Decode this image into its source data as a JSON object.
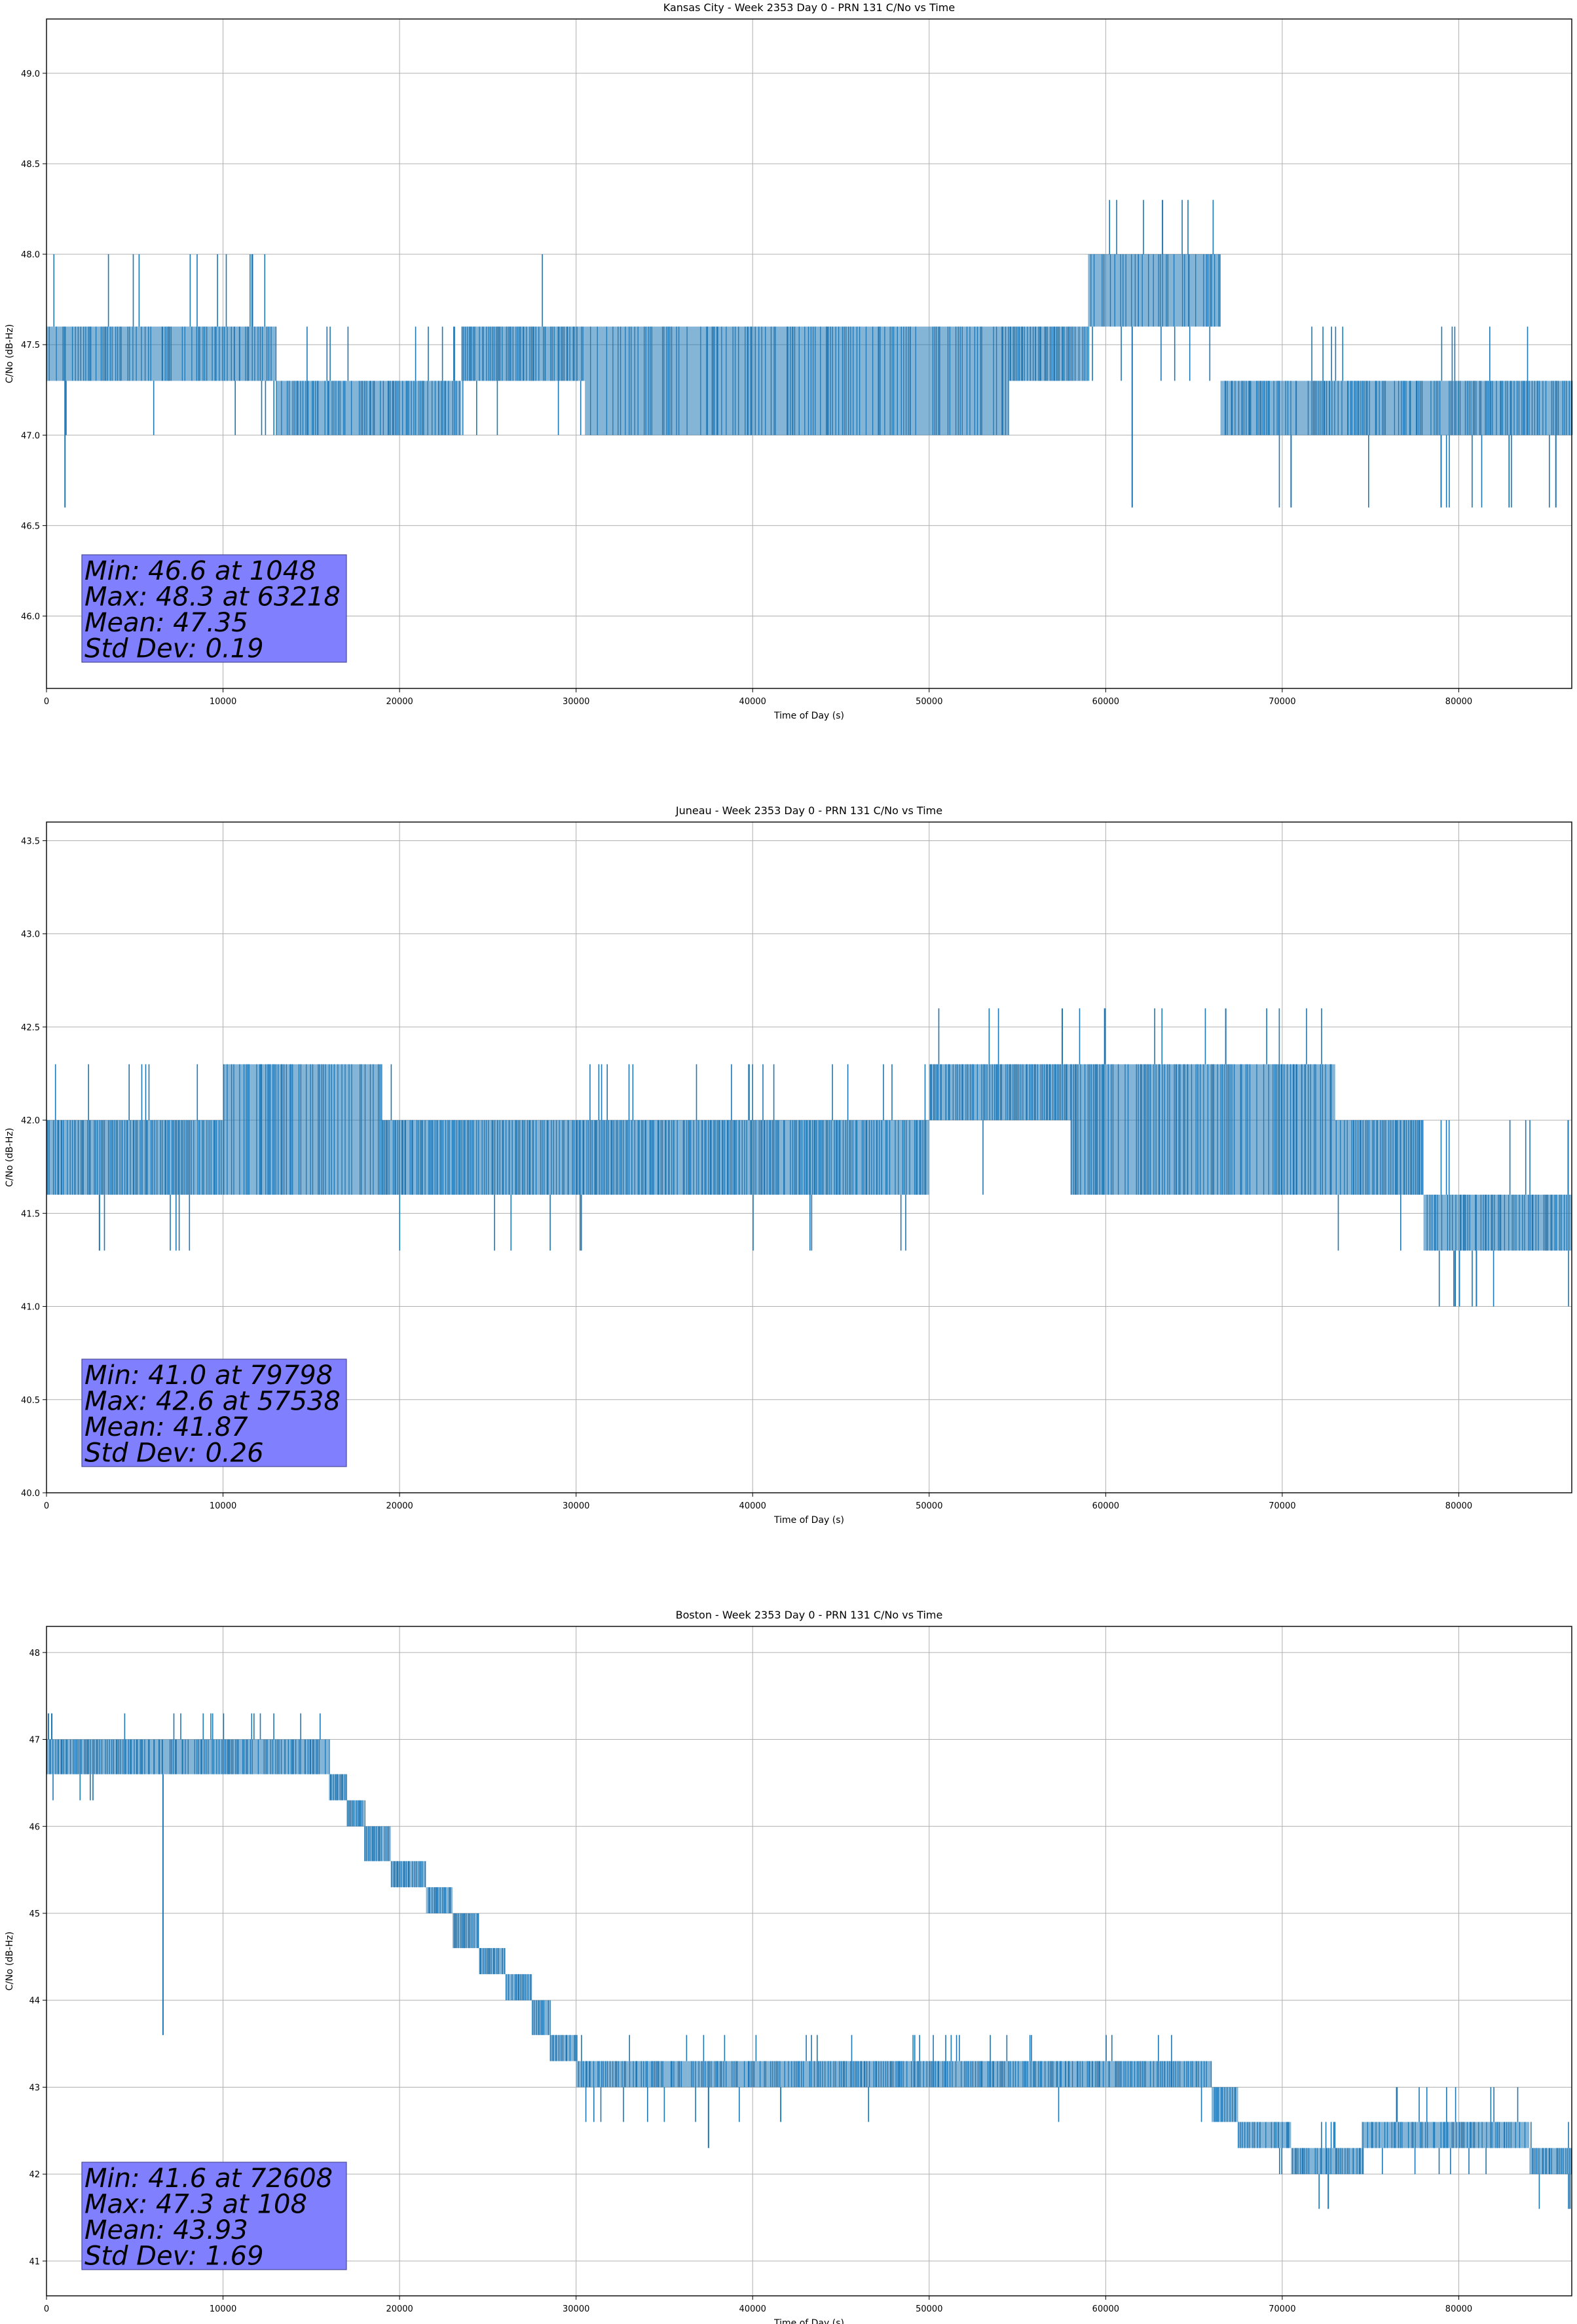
{
  "chart_data": [
    {
      "type": "line",
      "title": "Kansas City - Week 2353 Day 0 - PRN 131 C/No vs Time",
      "xlabel": "Time of Day (s)",
      "ylabel": "C/No (dB-Hz)",
      "xlim": [
        0,
        86400
      ],
      "ylim": [
        45.6,
        49.3
      ],
      "xticks": [
        0,
        10000,
        20000,
        30000,
        40000,
        50000,
        60000,
        70000,
        80000
      ],
      "xtick_labels": [
        "0",
        "10000",
        "20000",
        "30000",
        "40000",
        "50000",
        "60000",
        "70000",
        "80000"
      ],
      "yticks": [
        46.0,
        46.5,
        47.0,
        47.5,
        48.0,
        48.5,
        49.0
      ],
      "ytick_labels": [
        "46.0",
        "46.5",
        "47.0",
        "47.5",
        "48.0",
        "48.5",
        "49.0"
      ],
      "grid": true,
      "series_color": "#1f77b4",
      "segments": [
        {
          "x0": 0,
          "x1": 13000,
          "lo": 47.3,
          "hi": 47.6,
          "density": 0.55,
          "spike_hi": 48.0,
          "spike_lo": 47.0,
          "spikes": 18
        },
        {
          "x0": 13000,
          "x1": 23500,
          "lo": 47.0,
          "hi": 47.3,
          "density": 0.7,
          "spike_hi": 47.6,
          "spike_lo": 47.0,
          "spikes": 14
        },
        {
          "x0": 23500,
          "x1": 30500,
          "lo": 47.3,
          "hi": 47.6,
          "density": 0.8,
          "spike_hi": 48.0,
          "spike_lo": 47.0,
          "spikes": 6
        },
        {
          "x0": 30500,
          "x1": 54500,
          "lo": 47.0,
          "hi": 47.6,
          "density": 0.45,
          "spike_hi": 47.6,
          "spike_lo": 47.0,
          "spikes": 10
        },
        {
          "x0": 54500,
          "x1": 59000,
          "lo": 47.3,
          "hi": 47.6,
          "density": 0.85,
          "spike_hi": 47.6,
          "spike_lo": 47.3,
          "spikes": 2
        },
        {
          "x0": 59000,
          "x1": 66500,
          "lo": 47.6,
          "hi": 48.0,
          "density": 0.4,
          "spike_hi": 48.3,
          "spike_lo": 47.3,
          "spikes": 12
        },
        {
          "x0": 66500,
          "x1": 86400,
          "lo": 47.0,
          "hi": 47.3,
          "density": 0.7,
          "spike_hi": 47.6,
          "spike_lo": 46.6,
          "spikes": 20
        }
      ],
      "extremes": [
        {
          "x": 1048,
          "y": 46.6
        },
        {
          "x": 63218,
          "y": 48.3
        },
        {
          "x": 61500,
          "y": 46.6
        },
        {
          "x": 70500,
          "y": 46.6
        },
        {
          "x": 79000,
          "y": 46.6
        },
        {
          "x": 85500,
          "y": 46.6
        }
      ],
      "stats": {
        "min": "Min: 46.6 at 1048",
        "max": "Max: 48.3 at 63218",
        "mean": "Mean: 47.35",
        "std": "Std Dev: 0.19"
      }
    },
    {
      "type": "line",
      "title": "Juneau - Week 2353 Day 0 - PRN 131 C/No vs Time",
      "xlabel": "Time of Day (s)",
      "ylabel": "C/No (dB-Hz)",
      "xlim": [
        0,
        86400
      ],
      "ylim": [
        40.0,
        43.6
      ],
      "xticks": [
        0,
        10000,
        20000,
        30000,
        40000,
        50000,
        60000,
        70000,
        80000
      ],
      "xtick_labels": [
        "0",
        "10000",
        "20000",
        "30000",
        "40000",
        "50000",
        "60000",
        "70000",
        "80000"
      ],
      "yticks": [
        40.0,
        40.5,
        41.0,
        41.5,
        42.0,
        42.5,
        43.0,
        43.5
      ],
      "ytick_labels": [
        "40.0",
        "40.5",
        "41.0",
        "41.5",
        "42.0",
        "42.5",
        "43.0",
        "43.5"
      ],
      "grid": true,
      "series_color": "#1f77b4",
      "segments": [
        {
          "x0": 0,
          "x1": 10000,
          "lo": 41.6,
          "hi": 42.0,
          "density": 0.85,
          "spike_hi": 42.3,
          "spike_lo": 41.3,
          "spikes": 12
        },
        {
          "x0": 10000,
          "x1": 19000,
          "lo": 41.6,
          "hi": 42.3,
          "density": 0.55,
          "spike_hi": 42.3,
          "spike_lo": 41.6,
          "spikes": 8
        },
        {
          "x0": 19000,
          "x1": 50000,
          "lo": 41.6,
          "hi": 42.0,
          "density": 0.85,
          "spike_hi": 42.3,
          "spike_lo": 41.3,
          "spikes": 30
        },
        {
          "x0": 50000,
          "x1": 58000,
          "lo": 42.0,
          "hi": 42.3,
          "density": 0.9,
          "spike_hi": 42.6,
          "spike_lo": 41.6,
          "spikes": 4
        },
        {
          "x0": 58000,
          "x1": 73000,
          "lo": 41.6,
          "hi": 42.3,
          "density": 0.6,
          "spike_hi": 42.6,
          "spike_lo": 41.6,
          "spikes": 16
        },
        {
          "x0": 73000,
          "x1": 78000,
          "lo": 41.6,
          "hi": 42.0,
          "density": 0.8,
          "spike_hi": 42.0,
          "spike_lo": 41.3,
          "spikes": 8
        },
        {
          "x0": 78000,
          "x1": 86400,
          "lo": 41.3,
          "hi": 41.6,
          "density": 0.7,
          "spike_hi": 42.0,
          "spike_lo": 41.0,
          "spikes": 14
        }
      ],
      "extremes": [
        {
          "x": 79798,
          "y": 41.0
        },
        {
          "x": 57538,
          "y": 42.6
        },
        {
          "x": 81000,
          "y": 41.0
        },
        {
          "x": 66800,
          "y": 42.6
        },
        {
          "x": 3000,
          "y": 41.3
        }
      ],
      "stats": {
        "min": "Min: 41.0 at 79798",
        "max": "Max: 42.6 at 57538",
        "mean": "Mean: 41.87",
        "std": "Std Dev: 0.26"
      }
    },
    {
      "type": "line",
      "title": "Boston - Week 2353 Day 0 - PRN 131 C/No vs Time",
      "xlabel": "Time of Day (s)",
      "ylabel": "C/No (dB-Hz)",
      "xlim": [
        0,
        86400
      ],
      "ylim": [
        40.6,
        48.3
      ],
      "xticks": [
        0,
        10000,
        20000,
        30000,
        40000,
        50000,
        60000,
        70000,
        80000
      ],
      "xtick_labels": [
        "0",
        "10000",
        "20000",
        "30000",
        "40000",
        "50000",
        "60000",
        "70000",
        "80000"
      ],
      "yticks": [
        41,
        42,
        43,
        44,
        45,
        46,
        47,
        48
      ],
      "ytick_labels": [
        "41",
        "42",
        "43",
        "44",
        "45",
        "46",
        "47",
        "48"
      ],
      "grid": true,
      "series_color": "#1f77b4",
      "segments": [
        {
          "x0": 0,
          "x1": 6000,
          "lo": 46.6,
          "hi": 47.0,
          "density": 0.85,
          "spike_hi": 47.3,
          "spike_lo": 46.3,
          "spikes": 8
        },
        {
          "x0": 6000,
          "x1": 16000,
          "lo": 46.6,
          "hi": 47.0,
          "density": 0.75,
          "spike_hi": 47.3,
          "spike_lo": 46.6,
          "spikes": 20
        },
        {
          "x0": 16000,
          "x1": 17000,
          "lo": 46.3,
          "hi": 46.6,
          "density": 0.9,
          "spike_hi": 46.6,
          "spike_lo": 46.3,
          "spikes": 1
        },
        {
          "x0": 17000,
          "x1": 18000,
          "lo": 46.0,
          "hi": 46.3,
          "density": 0.9,
          "spike_hi": 46.3,
          "spike_lo": 46.0,
          "spikes": 1
        },
        {
          "x0": 18000,
          "x1": 19500,
          "lo": 45.6,
          "hi": 46.0,
          "density": 0.9,
          "spike_hi": 46.0,
          "spike_lo": 45.6,
          "spikes": 1
        },
        {
          "x0": 19500,
          "x1": 21500,
          "lo": 45.3,
          "hi": 45.6,
          "density": 0.9,
          "spike_hi": 45.6,
          "spike_lo": 45.3,
          "spikes": 1
        },
        {
          "x0": 21500,
          "x1": 23000,
          "lo": 45.0,
          "hi": 45.3,
          "density": 0.9,
          "spike_hi": 45.3,
          "spike_lo": 45.0,
          "spikes": 1
        },
        {
          "x0": 23000,
          "x1": 24500,
          "lo": 44.6,
          "hi": 45.0,
          "density": 0.9,
          "spike_hi": 45.0,
          "spike_lo": 44.6,
          "spikes": 1
        },
        {
          "x0": 24500,
          "x1": 26000,
          "lo": 44.3,
          "hi": 44.6,
          "density": 0.9,
          "spike_hi": 44.6,
          "spike_lo": 44.3,
          "spikes": 1
        },
        {
          "x0": 26000,
          "x1": 27500,
          "lo": 44.0,
          "hi": 44.3,
          "density": 0.9,
          "spike_hi": 44.3,
          "spike_lo": 44.0,
          "spikes": 1
        },
        {
          "x0": 27500,
          "x1": 28500,
          "lo": 43.6,
          "hi": 44.0,
          "density": 0.9,
          "spike_hi": 44.0,
          "spike_lo": 43.6,
          "spikes": 1
        },
        {
          "x0": 28500,
          "x1": 30000,
          "lo": 43.3,
          "hi": 43.6,
          "density": 0.9,
          "spike_hi": 43.6,
          "spike_lo": 43.3,
          "spikes": 3
        },
        {
          "x0": 30000,
          "x1": 45000,
          "lo": 43.0,
          "hi": 43.3,
          "density": 0.6,
          "spike_hi": 43.6,
          "spike_lo": 42.6,
          "spikes": 20
        },
        {
          "x0": 45000,
          "x1": 66000,
          "lo": 43.0,
          "hi": 43.3,
          "density": 0.75,
          "spike_hi": 43.6,
          "spike_lo": 42.6,
          "spikes": 20
        },
        {
          "x0": 66000,
          "x1": 67500,
          "lo": 42.6,
          "hi": 43.0,
          "density": 0.8,
          "spike_hi": 43.0,
          "spike_lo": 42.6,
          "spikes": 2
        },
        {
          "x0": 67500,
          "x1": 70500,
          "lo": 42.3,
          "hi": 42.6,
          "density": 0.8,
          "spike_hi": 42.6,
          "spike_lo": 42.0,
          "spikes": 3
        },
        {
          "x0": 70500,
          "x1": 74500,
          "lo": 42.0,
          "hi": 42.3,
          "density": 0.7,
          "spike_hi": 42.6,
          "spike_lo": 41.6,
          "spikes": 6
        },
        {
          "x0": 74500,
          "x1": 84000,
          "lo": 42.3,
          "hi": 42.6,
          "density": 0.6,
          "spike_hi": 43.0,
          "spike_lo": 42.0,
          "spikes": 16
        },
        {
          "x0": 84000,
          "x1": 86400,
          "lo": 42.0,
          "hi": 42.3,
          "density": 0.8,
          "spike_hi": 42.6,
          "spike_lo": 41.6,
          "spikes": 4
        }
      ],
      "extremes": [
        {
          "x": 108,
          "y": 47.3
        },
        {
          "x": 6600,
          "y": 43.6
        },
        {
          "x": 72608,
          "y": 41.6
        },
        {
          "x": 86300,
          "y": 41.6
        },
        {
          "x": 37500,
          "y": 42.3
        }
      ],
      "stats": {
        "min": "Min: 41.6 at 72608",
        "max": "Max: 47.3 at 108",
        "mean": "Mean: 43.93",
        "std": "Std Dev: 1.69"
      }
    }
  ]
}
